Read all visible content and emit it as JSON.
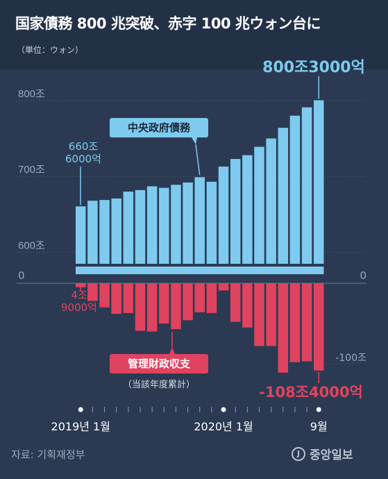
{
  "header": {
    "title": "国家債務 800 兆突破、赤字 100 兆ウォン台に",
    "unit": "（単位：ウォン）"
  },
  "footer": {
    "source": "자료: 기획재정부",
    "logo_mark": "J",
    "logo_text": "중앙일보"
  },
  "colors": {
    "background": "#2b3a52",
    "debt": "#7ecbef",
    "deficit": "#e0435f"
  },
  "chart_data": {
    "type": "bar",
    "categories": [
      "2019-01",
      "2019-02",
      "2019-03",
      "2019-04",
      "2019-05",
      "2019-06",
      "2019-07",
      "2019-08",
      "2019-09",
      "2019-10",
      "2019-11",
      "2019-12",
      "2020-01",
      "2020-02",
      "2020-03",
      "2020-04",
      "2020-05",
      "2020-06",
      "2020-07",
      "2020-08",
      "2020-09"
    ],
    "series": [
      {
        "name": "中央政府債務",
        "unit": "兆ウォン",
        "values": [
          660.6,
          668,
          669,
          671,
          680,
          682,
          687,
          685,
          689,
          692,
          699,
          693,
          713,
          723,
          728,
          739,
          750,
          764,
          780,
          791,
          800.3
        ]
      },
      {
        "name": "管理財政収支",
        "note": "（当該年度累計）",
        "unit": "兆ウォン",
        "values": [
          -4.9,
          -22,
          -30,
          -38,
          -37,
          -59,
          -60,
          -50,
          -57,
          -46,
          -36,
          -37,
          -9,
          -48,
          -55,
          -78,
          -78,
          -111,
          -98,
          -97,
          -108.4
        ]
      }
    ],
    "y_ticks_debt": [
      {
        "label": "800조",
        "value": 800
      },
      {
        "label": "700조",
        "value": 700
      },
      {
        "label": "600조",
        "value": 600
      }
    ],
    "zero_label": "0",
    "y_tick_deficit": {
      "label": "-100조",
      "value": -100
    },
    "annotations": {
      "debt_start": [
        "660조",
        "6000억"
      ],
      "debt_end": "800조3000억",
      "deficit_start": [
        "4조",
        "9000억"
      ],
      "deficit_end": "-108조4000억"
    },
    "x_labels": [
      {
        "label": "2019년 1월",
        "index": 0
      },
      {
        "label": "2020년 1월",
        "index": 12
      },
      {
        "label": "9월",
        "index": 20
      }
    ],
    "ylim_debt": [
      585,
      808
    ],
    "ylim_deficit": [
      -120,
      0
    ]
  }
}
